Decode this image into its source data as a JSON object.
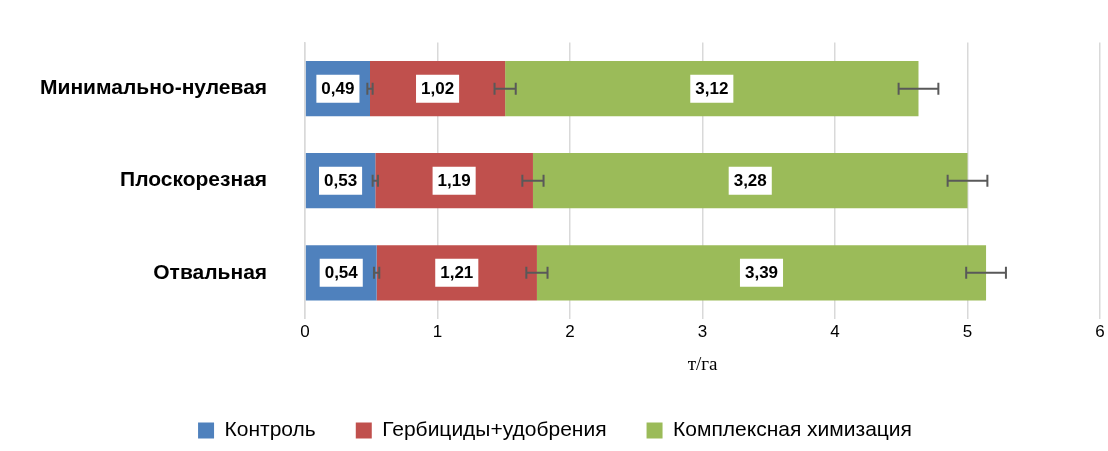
{
  "chart_data": {
    "type": "bar",
    "orientation": "horizontal",
    "stacked": true,
    "xlabel": "т/га",
    "categories": [
      "Минимально-нулевая",
      "Плоскорезная",
      "Отвальная"
    ],
    "series": [
      {
        "name": "Контроль",
        "color": "#4f81bd",
        "values": [
          0.49,
          0.53,
          0.54
        ],
        "errors": [
          0.02,
          0.02,
          0.02
        ],
        "value_labels": [
          "0,49",
          "0,53",
          "0,54"
        ]
      },
      {
        "name": "Гербициды+удобрения",
        "color": "#c0504d",
        "values": [
          1.02,
          1.19,
          1.21
        ],
        "errors": [
          0.08,
          0.08,
          0.08
        ],
        "value_labels": [
          "1,02",
          "1,19",
          "1,21"
        ]
      },
      {
        "name": "Комплексная химизация",
        "color": "#9bbb59",
        "values": [
          3.12,
          3.28,
          3.39
        ],
        "errors": [
          0.15,
          0.15,
          0.15
        ],
        "value_labels": [
          "3,12",
          "3,28",
          "3,39"
        ]
      }
    ],
    "xlim": [
      0,
      6
    ],
    "xticks": [
      0,
      1,
      2,
      3,
      4,
      5,
      6
    ],
    "grid": "x",
    "legend": "bottom"
  }
}
